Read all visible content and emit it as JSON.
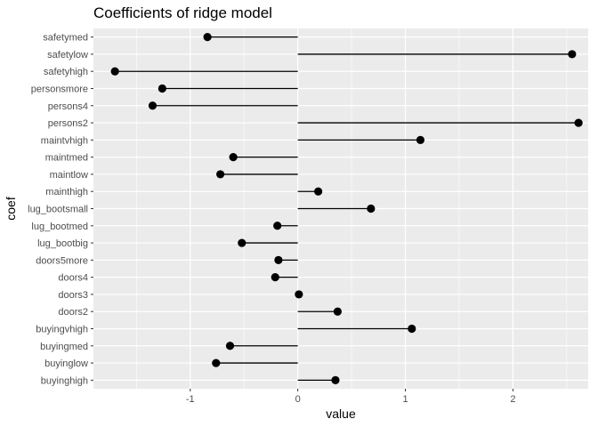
{
  "chart_data": {
    "type": "lollipop",
    "title": "Coefficients of ridge model",
    "xlabel": "value",
    "ylabel": "coef",
    "xlim": [
      -1.9,
      2.7
    ],
    "x_ticks": [
      -1,
      0,
      1,
      2
    ],
    "x_tick_labels": [
      "-1",
      "0",
      "1",
      "2"
    ],
    "baseline": 0,
    "grid": true,
    "colors": {
      "panel": "#ebebeb",
      "grid": "#ffffff",
      "point": "#000000",
      "segment": "#000000"
    },
    "points": [
      {
        "coef": "safetymed",
        "value": -0.84
      },
      {
        "coef": "safetylow",
        "value": 2.55
      },
      {
        "coef": "safetyhigh",
        "value": -1.7
      },
      {
        "coef": "personsmore",
        "value": -1.26
      },
      {
        "coef": "persons4",
        "value": -1.35
      },
      {
        "coef": "persons2",
        "value": 2.61
      },
      {
        "coef": "maintvhigh",
        "value": 1.14
      },
      {
        "coef": "maintmed",
        "value": -0.6
      },
      {
        "coef": "maintlow",
        "value": -0.72
      },
      {
        "coef": "mainthigh",
        "value": 0.19
      },
      {
        "coef": "lug_bootsmall",
        "value": 0.68
      },
      {
        "coef": "lug_bootmed",
        "value": -0.19
      },
      {
        "coef": "lug_bootbig",
        "value": -0.52
      },
      {
        "coef": "doors5more",
        "value": -0.18
      },
      {
        "coef": "doors4",
        "value": -0.21
      },
      {
        "coef": "doors3",
        "value": 0.01
      },
      {
        "coef": "doors2",
        "value": 0.37
      },
      {
        "coef": "buyingvhigh",
        "value": 1.06
      },
      {
        "coef": "buyingmed",
        "value": -0.63
      },
      {
        "coef": "buyinglow",
        "value": -0.76
      },
      {
        "coef": "buyinghigh",
        "value": 0.35
      }
    ]
  }
}
